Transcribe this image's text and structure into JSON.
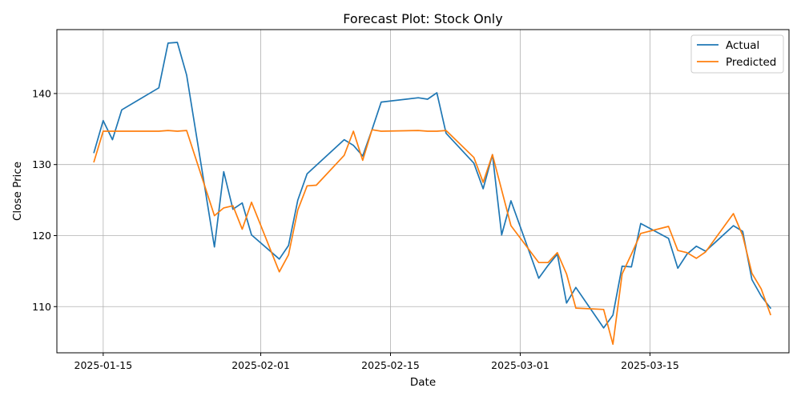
{
  "chart_data": {
    "type": "line",
    "title": "Forecast Plot: Stock Only",
    "xlabel": "Date",
    "ylabel": "Close Price",
    "xlim": [
      "2025-01-10",
      "2025-03-30"
    ],
    "ylim": [
      103.5,
      149
    ],
    "x_ticks": [
      "2025-01-15",
      "2025-02-01",
      "2025-02-15",
      "2025-03-01",
      "2025-03-15"
    ],
    "y_ticks": [
      110,
      120,
      130,
      140
    ],
    "grid": true,
    "legend_position": "top-right",
    "series": [
      {
        "name": "Actual",
        "color": "#1f77b4",
        "x": [
          "2025-01-14",
          "2025-01-15",
          "2025-01-16",
          "2025-01-17",
          "2025-01-21",
          "2025-01-22",
          "2025-01-23",
          "2025-01-24",
          "2025-01-27",
          "2025-01-28",
          "2025-01-29",
          "2025-01-30",
          "2025-01-31",
          "2025-02-03",
          "2025-02-04",
          "2025-02-05",
          "2025-02-06",
          "2025-02-10",
          "2025-02-11",
          "2025-02-12",
          "2025-02-13",
          "2025-02-14",
          "2025-02-18",
          "2025-02-19",
          "2025-02-20",
          "2025-02-21",
          "2025-02-24",
          "2025-02-25",
          "2025-02-26",
          "2025-02-27",
          "2025-02-28",
          "2025-03-03",
          "2025-03-04",
          "2025-03-05",
          "2025-03-06",
          "2025-03-07",
          "2025-03-10",
          "2025-03-11",
          "2025-03-12",
          "2025-03-13",
          "2025-03-14",
          "2025-03-17",
          "2025-03-18",
          "2025-03-19",
          "2025-03-20",
          "2025-03-21",
          "2025-03-24",
          "2025-03-25",
          "2025-03-26",
          "2025-03-27",
          "2025-03-28"
        ],
        "values": [
          131.7,
          136.2,
          133.5,
          137.7,
          140.8,
          147.1,
          147.2,
          142.6,
          118.4,
          129.0,
          123.7,
          124.6,
          120.1,
          116.7,
          118.6,
          125.0,
          128.7,
          133.5,
          132.7,
          131.2,
          134.9,
          138.8,
          139.4,
          139.2,
          140.1,
          134.4,
          130.2,
          126.6,
          131.4,
          120.1,
          124.9,
          114.0,
          115.8,
          117.4,
          110.5,
          112.7,
          107.0,
          108.8,
          115.7,
          115.6,
          121.7,
          119.6,
          115.4,
          117.4,
          118.5,
          117.8,
          121.4,
          120.6,
          113.8,
          111.5,
          109.8
        ]
      },
      {
        "name": "Predicted",
        "color": "#ff7f0e",
        "x": [
          "2025-01-14",
          "2025-01-15",
          "2025-01-16",
          "2025-01-17",
          "2025-01-21",
          "2025-01-22",
          "2025-01-23",
          "2025-01-24",
          "2025-01-27",
          "2025-01-28",
          "2025-01-29",
          "2025-01-30",
          "2025-01-31",
          "2025-02-03",
          "2025-02-04",
          "2025-02-05",
          "2025-02-06",
          "2025-02-07",
          "2025-02-10",
          "2025-02-11",
          "2025-02-12",
          "2025-02-13",
          "2025-02-14",
          "2025-02-18",
          "2025-02-19",
          "2025-02-20",
          "2025-02-21",
          "2025-02-24",
          "2025-02-25",
          "2025-02-26",
          "2025-02-28",
          "2025-03-03",
          "2025-03-04",
          "2025-03-05",
          "2025-03-06",
          "2025-03-07",
          "2025-03-10",
          "2025-03-11",
          "2025-03-12",
          "2025-03-13",
          "2025-03-14",
          "2025-03-17",
          "2025-03-18",
          "2025-03-19",
          "2025-03-20",
          "2025-03-21",
          "2025-03-24",
          "2025-03-25",
          "2025-03-26",
          "2025-03-27",
          "2025-03-28"
        ],
        "values": [
          130.4,
          134.7,
          134.7,
          134.7,
          134.7,
          134.8,
          134.7,
          134.8,
          122.8,
          123.9,
          124.2,
          120.9,
          124.7,
          114.9,
          117.3,
          123.6,
          127.0,
          127.1,
          131.3,
          134.7,
          130.6,
          134.9,
          134.7,
          134.8,
          134.7,
          134.7,
          134.8,
          131.0,
          127.5,
          131.4,
          121.4,
          116.2,
          116.2,
          117.6,
          114.6,
          109.8,
          109.6,
          104.7,
          114.6,
          117.4,
          120.3,
          121.3,
          117.9,
          117.6,
          116.8,
          117.7,
          123.1,
          120.0,
          114.7,
          112.5,
          108.9
        ]
      }
    ]
  }
}
